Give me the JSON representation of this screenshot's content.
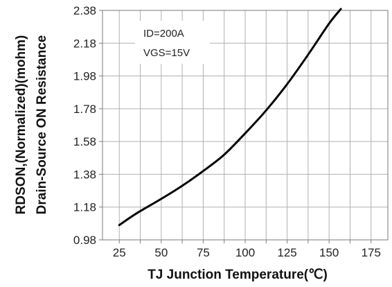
{
  "chart_data": {
    "type": "line",
    "title": "",
    "xlabel": "TJ  Junction Temperature(℃)",
    "ylabel_lines": [
      "RDSON,(Normalized)(mohm)",
      "Drain-Source ON Resistance"
    ],
    "xlim": [
      15,
      185
    ],
    "ylim": [
      0.98,
      2.38
    ],
    "x_ticks": [
      25,
      50,
      75,
      100,
      125,
      150,
      175
    ],
    "y_ticks": [
      "0.98",
      "1.18",
      "1.38",
      "1.58",
      "1.78",
      "1.98",
      "2.18",
      "2.38"
    ],
    "grid": true,
    "annotations": [
      "ID=200A",
      "VGS=15V"
    ],
    "series": [
      {
        "color": "#000000",
        "points": [
          [
            25,
            1.07
          ],
          [
            35,
            1.14
          ],
          [
            50,
            1.23
          ],
          [
            62.5,
            1.31
          ],
          [
            75,
            1.4
          ],
          [
            87.5,
            1.5
          ],
          [
            100,
            1.63
          ],
          [
            112.5,
            1.77
          ],
          [
            125,
            1.93
          ],
          [
            137.5,
            2.11
          ],
          [
            150,
            2.3
          ],
          [
            157,
            2.4
          ]
        ]
      }
    ]
  }
}
